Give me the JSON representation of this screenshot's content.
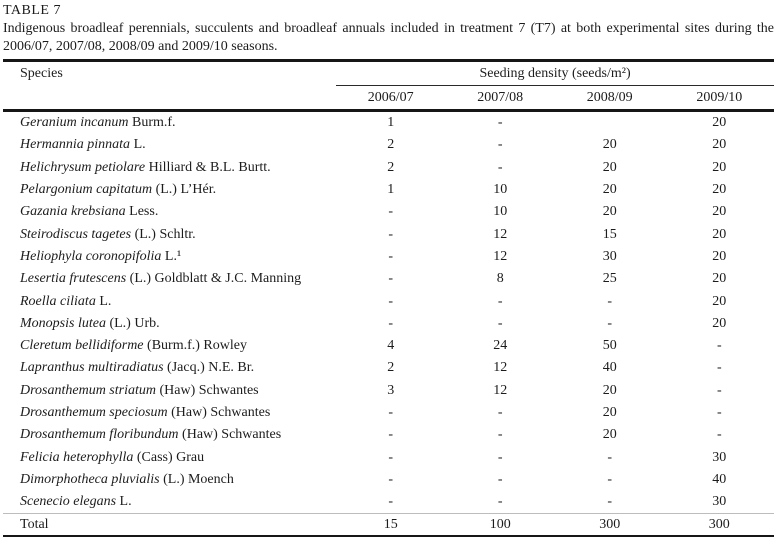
{
  "table_label": "TABLE 7",
  "caption": "Indigenous broadleaf perennials, succulents and broadleaf annuals included in treatment 7 (T7) at both experimental sites during the 2006/07, 2007/08, 2008/09 and 2009/10 seasons.",
  "colors": {
    "rule": "#161616",
    "text": "#1c1c1c",
    "total_rule": "#bdbdbd"
  },
  "table": {
    "headers": {
      "species": "Species",
      "group": "Seeding density (seeds/m²)",
      "seasons": [
        "2006/07",
        "2007/08",
        "2008/09",
        "2009/10"
      ]
    },
    "rows": [
      {
        "name": "Geranium incanum",
        "authority": "Burm.f.",
        "values": [
          "1",
          "-",
          "",
          "20"
        ]
      },
      {
        "name": "Hermannia pinnata",
        "authority": "L.",
        "values": [
          "2",
          "-",
          "20",
          "20"
        ]
      },
      {
        "name": "Helichrysum petiolare",
        "authority": "Hilliard & B.L. Burtt.",
        "values": [
          "2",
          "-",
          "20",
          "20"
        ]
      },
      {
        "name": "Pelargonium capitatum",
        "authority": "(L.) L’Hér.",
        "values": [
          "1",
          "10",
          "20",
          "20"
        ]
      },
      {
        "name": "Gazania krebsiana",
        "authority": "Less.",
        "values": [
          "-",
          "10",
          "20",
          "20"
        ]
      },
      {
        "name": "Steirodiscus tagetes",
        "authority": "(L.) Schltr.",
        "values": [
          "-",
          "12",
          "15",
          "20"
        ]
      },
      {
        "name": "Heliophyla coronopifolia",
        "authority": "L.¹",
        "values": [
          "-",
          "12",
          "30",
          "20"
        ]
      },
      {
        "name": "Lesertia frutescens",
        "authority": "(L.) Goldblatt & J.C. Manning",
        "values": [
          "-",
          "8",
          "25",
          "20"
        ]
      },
      {
        "name": "Roella ciliata",
        "authority": "L.",
        "values": [
          "-",
          "-",
          "-",
          "20"
        ]
      },
      {
        "name": "Monopsis lutea",
        "authority": "(L.) Urb.",
        "values": [
          "-",
          "-",
          "-",
          "20"
        ]
      },
      {
        "name": "Cleretum bellidiforme",
        "authority": "(Burm.f.) Rowley",
        "values": [
          "4",
          "24",
          "50",
          "-"
        ]
      },
      {
        "name": "Lapranthus multiradiatus",
        "authority": "(Jacq.) N.E. Br.",
        "values": [
          "2",
          "12",
          "40",
          "-"
        ]
      },
      {
        "name": "Drosanthemum striatum",
        "authority": "(Haw) Schwantes",
        "values": [
          "3",
          "12",
          "20",
          "-"
        ]
      },
      {
        "name": "Drosanthemum speciosum",
        "authority": "(Haw) Schwantes",
        "values": [
          "-",
          "-",
          "20",
          "-"
        ]
      },
      {
        "name": "Drosanthemum floribundum",
        "authority": "(Haw) Schwantes",
        "values": [
          "-",
          "-",
          "20",
          "-"
        ]
      },
      {
        "name": "Felicia heterophylla",
        "authority": "(Cass) Grau",
        "values": [
          "-",
          "-",
          "-",
          "30"
        ]
      },
      {
        "name": "Dimorphotheca pluvialis",
        "authority": "(L.) Moench",
        "values": [
          "-",
          "-",
          "-",
          "40"
        ]
      },
      {
        "name": "Scenecio elegans",
        "authority": "L.",
        "values": [
          "-",
          "-",
          "-",
          "30"
        ]
      }
    ],
    "total": {
      "label": "Total",
      "values": [
        "15",
        "100",
        "300",
        "300"
      ]
    }
  }
}
